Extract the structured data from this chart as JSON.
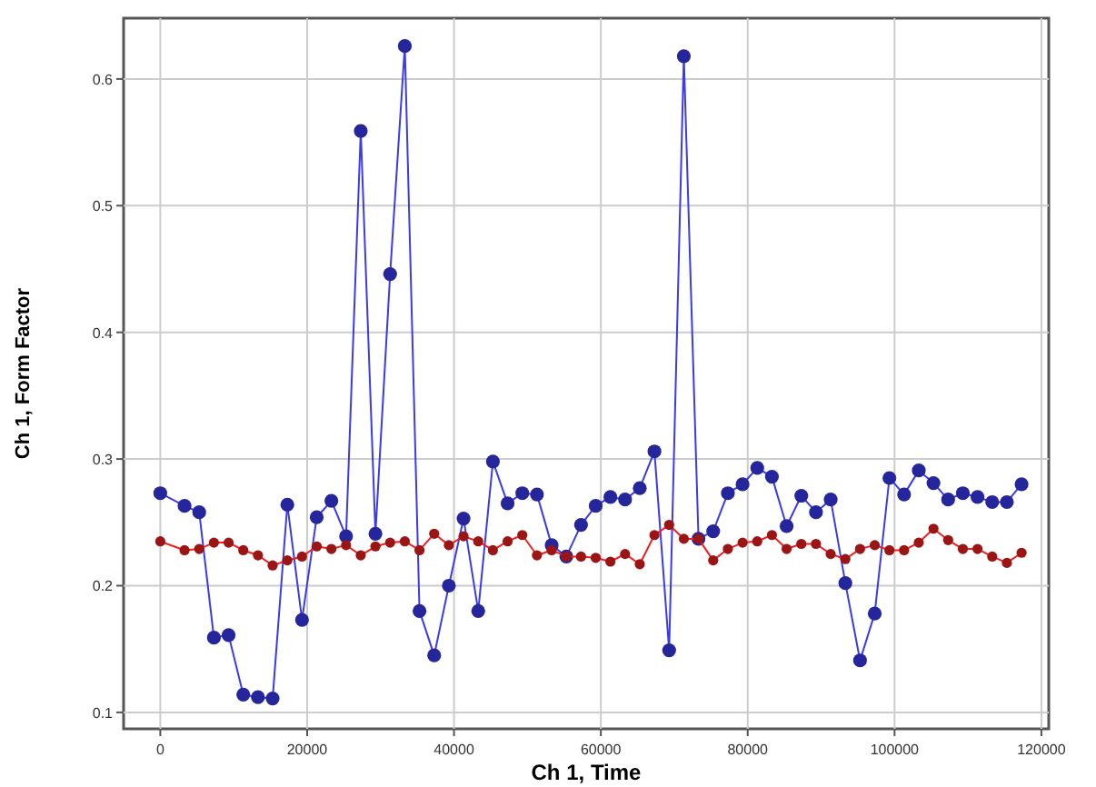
{
  "chart_data": {
    "type": "line",
    "xlabel": "Ch 1, Time",
    "ylabel": "Ch 1, Form Factor",
    "x": [
      0,
      3300,
      5300,
      7300,
      9300,
      11300,
      13300,
      15300,
      17300,
      19300,
      21300,
      23300,
      25300,
      27300,
      29300,
      31300,
      33300,
      35300,
      37300,
      39300,
      41300,
      43300,
      45300,
      47300,
      49300,
      51300,
      53300,
      55300,
      57300,
      59300,
      61300,
      63300,
      65300,
      67300,
      69300,
      71300,
      73300,
      75300,
      77300,
      79300,
      81300,
      83300,
      85300,
      87300,
      89300,
      91300,
      93300,
      95300,
      97300,
      99300,
      101300,
      103300,
      105300,
      107300,
      109300,
      111300,
      113300,
      115300,
      117300
    ],
    "series": [
      {
        "color": "#3a3af0",
        "values": [
          0.273,
          0.263,
          0.258,
          0.159,
          0.161,
          0.114,
          0.112,
          0.111,
          0.264,
          0.173,
          0.254,
          0.267,
          0.239,
          0.559,
          0.241,
          0.446,
          0.626,
          0.18,
          0.145,
          0.2,
          0.253,
          0.18,
          0.298,
          0.265,
          0.273,
          0.272,
          0.232,
          0.223,
          0.248,
          0.263,
          0.27,
          0.268,
          0.277,
          0.306,
          0.149,
          0.618,
          0.237,
          0.243,
          0.273,
          0.28,
          0.293,
          0.286,
          0.247,
          0.271,
          0.258,
          0.268,
          0.202,
          0.141,
          0.178,
          0.285,
          0.272,
          0.291,
          0.281,
          0.268,
          0.273,
          0.27,
          0.266,
          0.266,
          0.28
        ]
      },
      {
        "color": "#f02020",
        "values": [
          0.235,
          0.228,
          0.229,
          0.234,
          0.234,
          0.228,
          0.224,
          0.216,
          0.22,
          0.223,
          0.231,
          0.229,
          0.232,
          0.224,
          0.231,
          0.234,
          0.235,
          0.228,
          0.241,
          0.232,
          0.239,
          0.235,
          0.228,
          0.235,
          0.24,
          0.224,
          0.228,
          0.223,
          0.223,
          0.222,
          0.219,
          0.225,
          0.217,
          0.24,
          0.248,
          0.237,
          0.237,
          0.22,
          0.229,
          0.234,
          0.235,
          0.24,
          0.229,
          0.233,
          0.233,
          0.225,
          0.221,
          0.229,
          0.232,
          0.228,
          0.228,
          0.234,
          0.245,
          0.236,
          0.229,
          0.229,
          0.223,
          0.218,
          0.226
        ]
      }
    ],
    "xlim": [
      -5000,
      121000
    ],
    "xticks": [
      0,
      20000,
      40000,
      60000,
      80000,
      100000,
      120000
    ],
    "ylim": [
      0.087,
      0.648
    ],
    "yticks": [
      0.1,
      0.2,
      0.3,
      0.4,
      0.5,
      0.6
    ],
    "grid": true,
    "marker": "circle",
    "line_style": "solid"
  }
}
